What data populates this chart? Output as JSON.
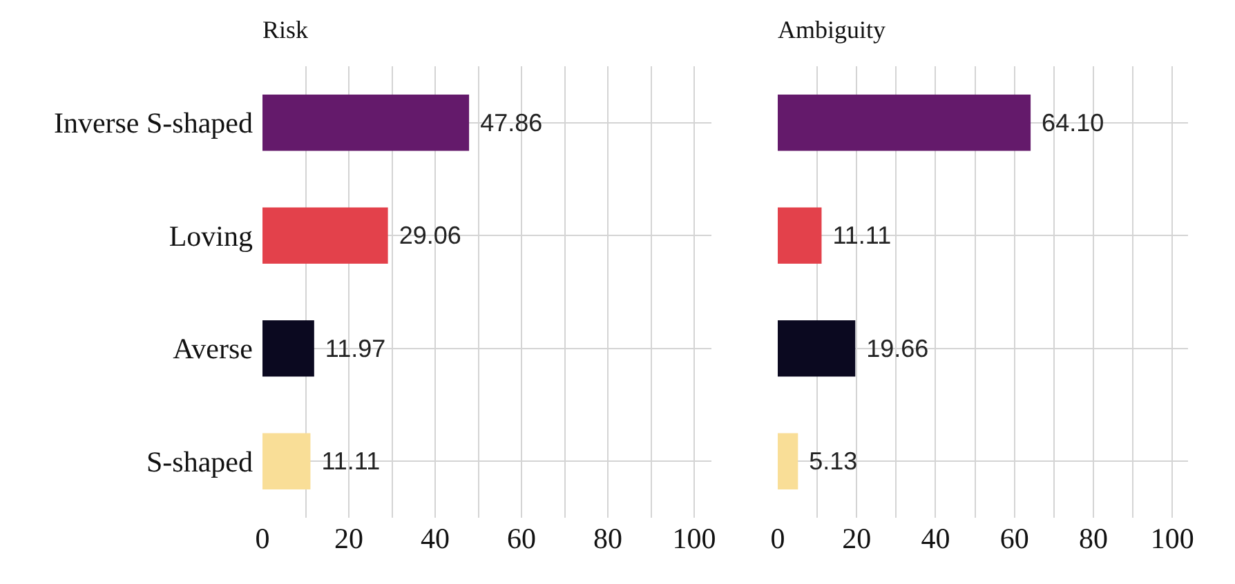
{
  "chart_data": [
    {
      "type": "bar",
      "orientation": "horizontal",
      "title": "Risk",
      "categories": [
        "Inverse S-shaped",
        "Loving",
        "Averse",
        "S-shaped"
      ],
      "values": [
        47.86,
        29.06,
        11.97,
        11.11
      ],
      "value_labels": [
        "47.86",
        "29.06",
        "11.97",
        "11.11"
      ],
      "colors": [
        "#641a6b",
        "#e3414b",
        "#0b0920",
        "#f9de97"
      ],
      "xlim": [
        0,
        104
      ],
      "xticks": [
        0,
        {
          "value": 10,
          "label": null
        },
        20,
        {
          "value": 30,
          "label": null
        },
        40,
        {
          "value": 50,
          "label": null
        },
        60,
        {
          "value": 70,
          "label": null
        },
        80,
        {
          "value": 90,
          "label": null
        },
        100
      ],
      "grid": true
    },
    {
      "type": "bar",
      "orientation": "horizontal",
      "title": "Ambiguity",
      "categories": [
        null,
        null,
        null,
        null
      ],
      "values": [
        64.1,
        11.11,
        19.66,
        5.13
      ],
      "value_labels": [
        "64.10",
        "11.11",
        "19.66",
        "5.13"
      ],
      "colors": [
        "#641a6b",
        "#e3414b",
        "#0b0920",
        "#f9de97"
      ],
      "xlim": [
        0,
        104
      ],
      "xticks": [
        0,
        {
          "value": 10,
          "label": null
        },
        20,
        {
          "value": 30,
          "label": null
        },
        40,
        {
          "value": 50,
          "label": null
        },
        60,
        {
          "value": 70,
          "label": null
        },
        80,
        {
          "value": 90,
          "label": null
        },
        100
      ],
      "grid": true,
      "tick_labels": "x"
    }
  ]
}
